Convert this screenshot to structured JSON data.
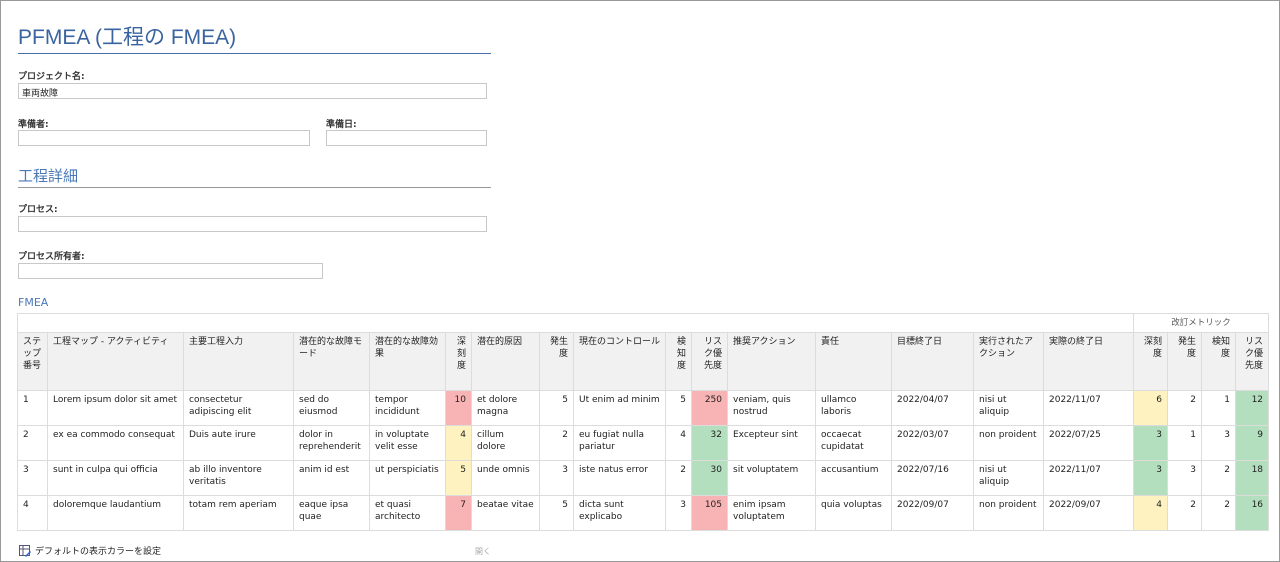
{
  "title": "PFMEA (工程の FMEA)",
  "project": {
    "label": "プロジェクト名:",
    "value": "車両故障"
  },
  "preparer": {
    "label": "準備者:",
    "value": ""
  },
  "date": {
    "label": "準備日:",
    "value": ""
  },
  "section": "工程詳細",
  "process": {
    "label": "プロセス:",
    "value": ""
  },
  "owner": {
    "label": "プロセス所有者:",
    "value": ""
  },
  "fmea_label": "FMEA",
  "revised_label": "改訂メトリック",
  "colors": {
    "high": "#f8b4b4",
    "medium": "#fef3c0",
    "low": "#b3dfbf",
    "accent": "#3a64a0"
  },
  "headers": [
    "ステップ番号",
    "工程マップ - アクティビティ",
    "主要工程入力",
    "潜在的な故障モード",
    "潜在的な故障効果",
    "深刻度",
    "潜在的原因",
    "発生度",
    "現在のコントロール",
    "検知度",
    "リスク優先度",
    "推奨アクション",
    "責任",
    "目標終了日",
    "実行されたアクション",
    "実際の終了日",
    "深刻度",
    "発生度",
    "検知度",
    "リスク優先度"
  ],
  "rows": [
    [
      "1",
      "Lorem ipsum dolor sit amet",
      "consectetur adipiscing elit",
      "sed do eiusmod",
      "tempor incididunt",
      "10",
      "et dolore magna",
      "5",
      "Ut enim ad minim",
      "5",
      "250",
      "veniam, quis nostrud",
      "ullamco laboris",
      "2022/04/07",
      "nisi ut aliquip",
      "2022/11/07",
      "6",
      "2",
      "1",
      "12"
    ],
    [
      "2",
      "ex ea commodo consequat",
      "Duis aute irure",
      "dolor in reprehenderit",
      "in voluptate velit esse",
      "4",
      "cillum dolore",
      "2",
      "eu fugiat nulla pariatur",
      "4",
      "32",
      "Excepteur sint",
      "occaecat cupidatat",
      "2022/03/07",
      "non proident",
      "2022/07/25",
      "3",
      "1",
      "3",
      "9"
    ],
    [
      "3",
      "sunt in culpa qui officia",
      "ab illo inventore veritatis",
      "anim id est",
      "ut perspiciatis",
      "5",
      "unde omnis",
      "3",
      "iste natus error",
      "2",
      "30",
      "sit voluptatem",
      "accusantium",
      "2022/07/16",
      "nisi ut aliquip",
      "2022/11/07",
      "3",
      "3",
      "2",
      "18"
    ],
    [
      "4",
      "doloremque laudantium",
      "totam rem aperiam",
      "eaque ipsa quae",
      "et quasi architecto",
      "7",
      "beatae vitae",
      "5",
      "dicta sunt explicabo",
      "3",
      "105",
      "enim ipsam voluptatem",
      "quia voluptas",
      "2022/09/07",
      "non proident",
      "2022/09/07",
      "4",
      "2",
      "2",
      "16"
    ]
  ],
  "cell_colors": [
    {
      "5": "red",
      "10": "red",
      "16": "yel",
      "19": "grn"
    },
    {
      "5": "yel",
      "10": "grn",
      "16": "grn",
      "19": "grn"
    },
    {
      "5": "yel",
      "10": "grn",
      "16": "grn",
      "19": "grn"
    },
    {
      "5": "red",
      "10": "red",
      "16": "yel",
      "19": "grn"
    }
  ],
  "footer": {
    "set_colors": "デフォルトの表示カラーを設定",
    "open": "開く",
    "icon": "edit-palette-icon"
  }
}
